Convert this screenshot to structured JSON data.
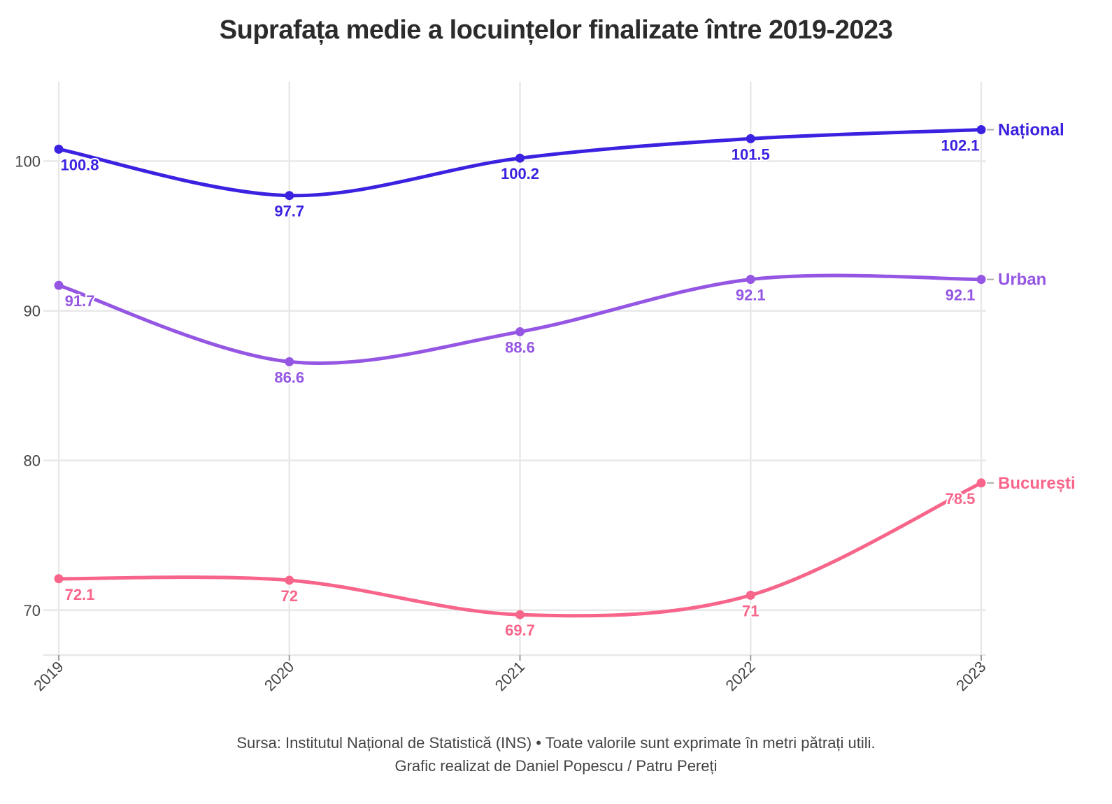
{
  "title": "Suprafața medie a locuințelor finalizate între 2019-2023",
  "caption": {
    "line1": "Sursa: Institutul Național de Statistică (INS) • Toate valorile sunt exprimate în metri pătrați utili.",
    "line2": "Grafic realizat de Daniel Popescu / Patru Pereți"
  },
  "chart_data": {
    "type": "line",
    "title": "Suprafața medie a locuințelor finalizate între 2019-2023",
    "xlabel": "",
    "ylabel": "",
    "x": [
      "2019",
      "2020",
      "2021",
      "2022",
      "2023"
    ],
    "yticks": [
      70,
      80,
      90,
      100
    ],
    "ylim": [
      67,
      105.3
    ],
    "grid": true,
    "legend": "end-of-line labels (right)",
    "series": [
      {
        "name": "Național",
        "color": "#3a22e0",
        "values": [
          100.8,
          97.7,
          100.2,
          101.5,
          102.1
        ],
        "labels": [
          "100.8",
          "97.7",
          "100.2",
          "101.5",
          "102.1"
        ]
      },
      {
        "name": "Urban",
        "color": "#9456e3",
        "values": [
          91.7,
          86.6,
          88.6,
          92.1,
          92.1
        ],
        "labels": [
          "91.7",
          "86.6",
          "88.6",
          "92.1",
          "92.1"
        ]
      },
      {
        "name": "București",
        "color": "#f7658a",
        "values": [
          72.1,
          72,
          69.7,
          71,
          78.5
        ],
        "labels": [
          "72.1",
          "72",
          "69.7",
          "71",
          "78.5"
        ]
      }
    ]
  }
}
